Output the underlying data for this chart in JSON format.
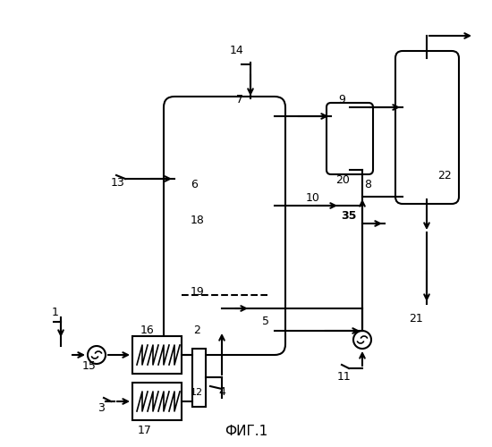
{
  "title": "ФИГ.1",
  "bg_color": "#ffffff",
  "line_color": "#000000",
  "fig_width": 5.5,
  "fig_height": 5.0,
  "dpi": 100
}
